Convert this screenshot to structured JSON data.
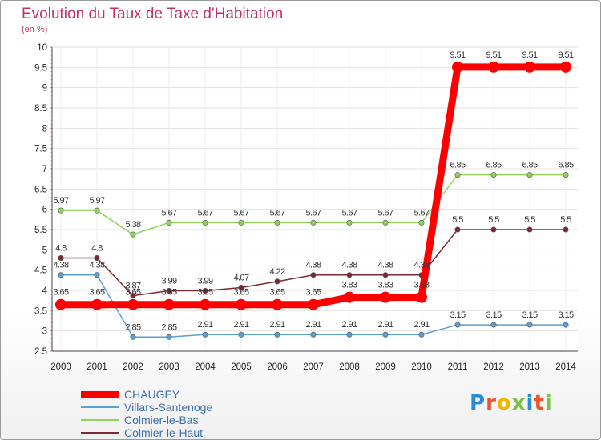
{
  "title": "Evolution du Taux de Taxe d'Habitation",
  "unit": "(en %)",
  "logo": {
    "text": "Proxiti",
    "letters": [
      "P",
      "r",
      "o",
      "x",
      "i",
      "t",
      "i"
    ],
    "colors": [
      "#2a8bd8",
      "#e8552a",
      "#f0b400",
      "#7cc242",
      "#2a8bd8",
      "#e8552a",
      "#7cc242"
    ]
  },
  "chart_data": {
    "type": "line",
    "x": [
      "2000",
      "2001",
      "2002",
      "2003",
      "2004",
      "2005",
      "2006",
      "2007",
      "2008",
      "2009",
      "2010",
      "2011",
      "2012",
      "2013",
      "2014"
    ],
    "ylim": [
      2.5,
      10
    ],
    "yticks": [
      "2.5",
      "3",
      "3.5",
      "4",
      "4.5",
      "5",
      "5.5",
      "6",
      "6.5",
      "7",
      "7.5",
      "8",
      "8.5",
      "9",
      "9.5",
      "10"
    ],
    "grid": true,
    "legend_position": "bottom-left",
    "series": [
      {
        "name": "CHAUGEY",
        "color": "#ff0000",
        "width": 9,
        "marker": 7,
        "values": [
          3.65,
          3.65,
          3.65,
          3.65,
          3.65,
          3.65,
          3.65,
          3.65,
          3.83,
          3.83,
          3.83,
          9.51,
          9.51,
          9.51,
          9.51
        ],
        "labels": [
          "3.65",
          "3.65",
          "3.65",
          "3.65",
          "3.65",
          "3.65",
          "3.65",
          "3.65",
          "3.83",
          "3.83",
          "3.83",
          "9.51",
          "9.51",
          "9.51",
          "9.51"
        ]
      },
      {
        "name": "Villars-Santenoge",
        "color": "#5a9fd0",
        "width": 1.5,
        "marker": 3.2,
        "values": [
          4.38,
          4.38,
          2.85,
          2.85,
          2.91,
          2.91,
          2.91,
          2.91,
          2.91,
          2.91,
          2.91,
          3.15,
          3.15,
          3.15,
          3.15
        ],
        "labels": [
          "4.38",
          "4.38",
          "2.85",
          "2.85",
          "2.91",
          "2.91",
          "2.91",
          "2.91",
          "2.91",
          "2.91",
          "2.91",
          "3.15",
          "3.15",
          "3.15",
          "3.15"
        ]
      },
      {
        "name": "Colmier-le-Bas",
        "color": "#8fd35a",
        "width": 1.5,
        "marker": 3.2,
        "values": [
          5.97,
          5.97,
          5.38,
          5.67,
          5.67,
          5.67,
          5.67,
          5.67,
          5.67,
          5.67,
          5.67,
          6.85,
          6.85,
          6.85,
          6.85
        ],
        "labels": [
          "5.97",
          "5.97",
          "5.38",
          "5.67",
          "5.67",
          "5.67",
          "5.67",
          "5.67",
          "5.67",
          "5.67",
          "5.67",
          "6.85",
          "6.85",
          "6.85",
          "6.85"
        ]
      },
      {
        "name": "Colmier-le-Haut",
        "color": "#7a2a32",
        "width": 1.5,
        "marker": 3.2,
        "values": [
          4.8,
          4.8,
          3.87,
          3.99,
          3.99,
          4.07,
          4.22,
          4.38,
          4.38,
          4.38,
          4.38,
          5.5,
          5.5,
          5.5,
          5.5
        ],
        "labels": [
          "4.8",
          "4.8",
          "3.87",
          "3.99",
          "3.99",
          "4.07",
          "4.22",
          "4.38",
          "4.38",
          "4.38",
          "4.38",
          "5.5",
          "5.5",
          "5.5",
          "5.5"
        ]
      }
    ]
  }
}
